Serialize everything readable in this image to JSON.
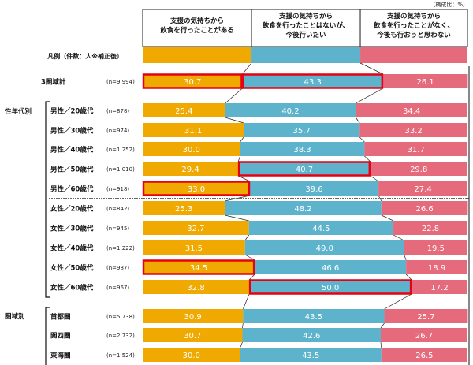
{
  "chart_data": {
    "type": "bar",
    "stacked": true,
    "orientation": "horizontal",
    "unit_note": "（構成比：%）",
    "legend_label": "凡例（件数：人※補正後）",
    "series": [
      {
        "name": "支援の気持ちから\n飲食を行ったことがある",
        "color": "#f0a900"
      },
      {
        "name": "支援の気持ちから\n飲食を行ったことはないが、\n今後行いたい",
        "color": "#5eb3cc"
      },
      {
        "name": "支援の気持ちから\n飲食を行ったことがなく、\n今後も行おうと思わない",
        "color": "#e46a7c"
      }
    ],
    "groups": [
      {
        "label": "",
        "rows": [
          0
        ]
      },
      {
        "label": "性年代別",
        "rows": [
          1,
          2,
          3,
          4,
          5,
          6,
          7,
          8,
          9,
          10
        ]
      },
      {
        "label": "圏域別",
        "rows": [
          11,
          12,
          13
        ]
      }
    ],
    "rows": [
      {
        "label": "3圏域計",
        "n": "(n=9,994)",
        "values": [
          30.7,
          43.3,
          26.1
        ],
        "highlight": [
          0,
          1
        ]
      },
      {
        "label": "男性／20歳代",
        "n": "(n=878)",
        "values": [
          25.4,
          40.2,
          34.4
        ],
        "highlight": []
      },
      {
        "label": "男性／30歳代",
        "n": "(n=974)",
        "values": [
          31.1,
          35.7,
          33.2
        ],
        "highlight": []
      },
      {
        "label": "男性／40歳代",
        "n": "(n=1,252)",
        "values": [
          30.0,
          38.3,
          31.7
        ],
        "highlight": []
      },
      {
        "label": "男性／50歳代",
        "n": "(n=1,010)",
        "values": [
          29.4,
          40.7,
          29.8
        ],
        "highlight": [
          1
        ]
      },
      {
        "label": "男性／60歳代",
        "n": "(n=918)",
        "values": [
          33.0,
          39.6,
          27.4
        ],
        "highlight": [
          0
        ]
      },
      {
        "label": "女性／20歳代",
        "n": "(n=842)",
        "values": [
          25.3,
          48.2,
          26.6
        ],
        "highlight": []
      },
      {
        "label": "女性／30歳代",
        "n": "(n=945)",
        "values": [
          32.7,
          44.5,
          22.8
        ],
        "highlight": []
      },
      {
        "label": "女性／40歳代",
        "n": "(n=1,222)",
        "values": [
          31.5,
          49.0,
          19.5
        ],
        "highlight": []
      },
      {
        "label": "女性／50歳代",
        "n": "(n=987)",
        "values": [
          34.5,
          46.6,
          18.9
        ],
        "highlight": [
          0
        ]
      },
      {
        "label": "女性／60歳代",
        "n": "(n=967)",
        "values": [
          32.8,
          50.0,
          17.2
        ],
        "highlight": [
          1
        ]
      },
      {
        "label": "首都圏",
        "n": "(n=5,738)",
        "values": [
          30.9,
          43.5,
          25.7
        ],
        "highlight": []
      },
      {
        "label": "関西圏",
        "n": "(n=2,732)",
        "values": [
          30.7,
          42.6,
          26.7
        ],
        "highlight": []
      },
      {
        "label": "東海圏",
        "n": "(n=1,524)",
        "values": [
          30.0,
          43.5,
          26.5
        ],
        "highlight": []
      }
    ],
    "highlight_color": "#e60012",
    "xlim": [
      0,
      100
    ]
  }
}
